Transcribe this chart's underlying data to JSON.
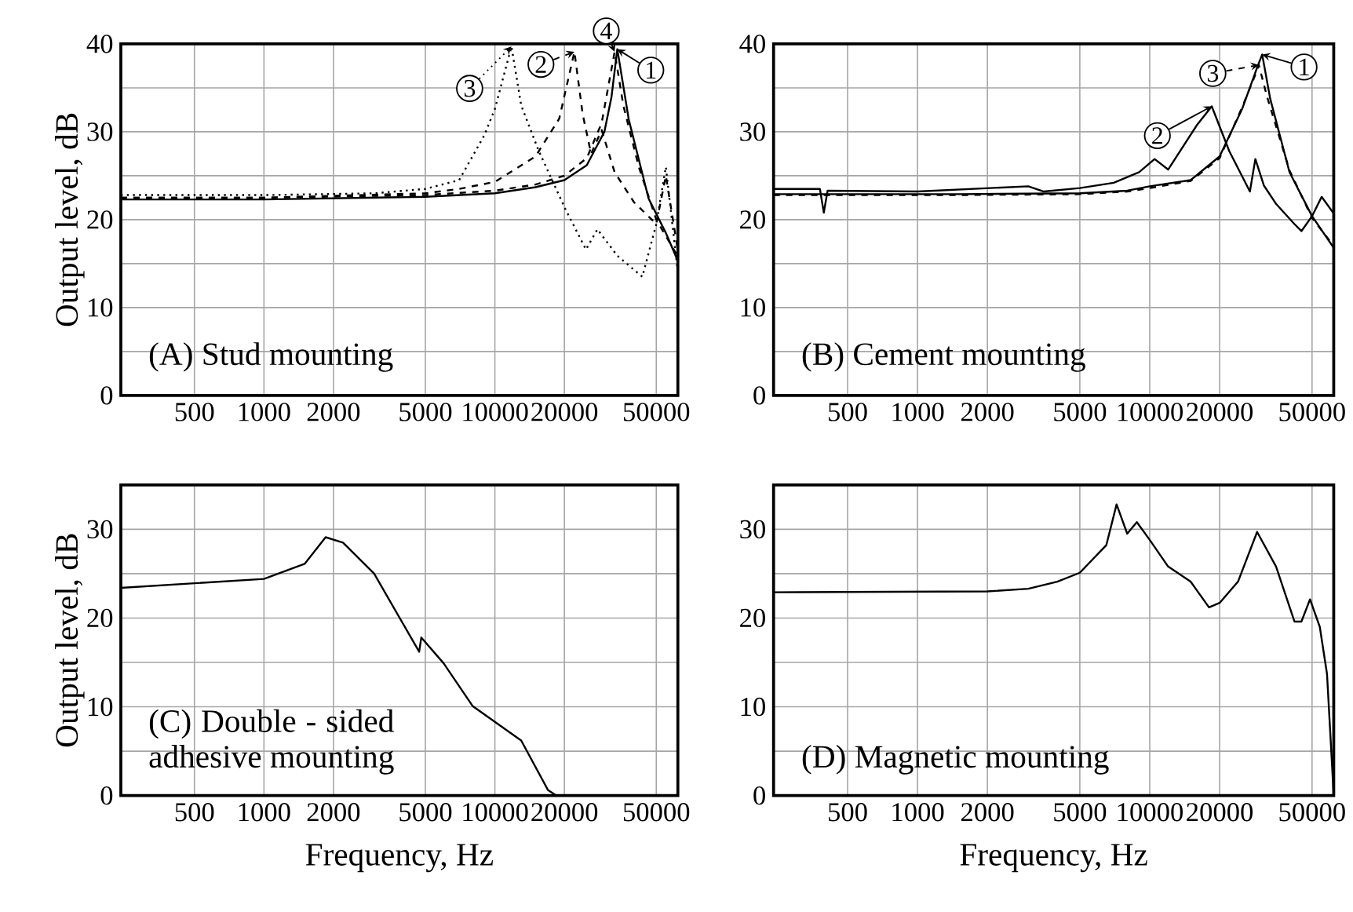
{
  "chart_data": [
    {
      "type": "line",
      "title": "(A) Stud mounting",
      "ylabel": "Output level, dB",
      "log": "x",
      "grid": true,
      "legend": "top right",
      "xlim": [
        240,
        62000
      ],
      "ylim": [
        0,
        40
      ],
      "xticks": [
        500,
        1000,
        2000,
        5000,
        10000,
        20000,
        50000
      ],
      "yticks": [
        0,
        10,
        20,
        30,
        40
      ],
      "series": [
        {
          "name": "1",
          "color": "#000000",
          "line_style": "solid",
          "x": [
            240,
            1000,
            5000,
            10000,
            15000,
            20000,
            25000,
            29800,
            32000,
            33900,
            38000,
            46300,
            55000,
            62000
          ],
          "values": [
            22.3,
            22.3,
            22.6,
            23,
            23.7,
            24.5,
            26.2,
            30,
            34,
            39.4,
            31.4,
            22.4,
            18.5,
            15.3
          ]
        },
        {
          "name": "2",
          "color": "#000000",
          "line_style": "dashed",
          "x": [
            240,
            1000,
            5000,
            7000,
            10000,
            15000,
            19000,
            22100,
            24000,
            26100,
            29000,
            33000,
            40000,
            50000,
            55000,
            62000
          ],
          "values": [
            22.5,
            22.5,
            23,
            23.5,
            24.3,
            27.2,
            31.5,
            39.1,
            32,
            27.5,
            30.2,
            25.4,
            22,
            19.5,
            25,
            16.5
          ]
        },
        {
          "name": "3",
          "color": "#000000",
          "line_style": "dotted",
          "x": [
            240,
            1000,
            3000,
            5000,
            7000,
            9000,
            10000,
            11800,
            13000,
            15500,
            20200,
            24800,
            27800,
            33900,
            43500,
            50000,
            55000,
            62000
          ],
          "values": [
            22.8,
            22.8,
            23,
            23.5,
            24.5,
            29.6,
            32.6,
            39.7,
            33,
            27.8,
            21.2,
            16.6,
            18.9,
            15.9,
            13.5,
            19.5,
            26,
            14
          ]
        },
        {
          "name": "4",
          "color": "#000000",
          "line_style": "dashed",
          "x": [
            240,
            1000,
            5000,
            10000,
            15000,
            20000,
            25000,
            29000,
            33000,
            36000,
            42000,
            50000,
            62000
          ],
          "values": [
            22.5,
            22.5,
            22.8,
            23.3,
            24,
            25,
            27,
            31,
            39.1,
            33,
            26,
            20,
            15.8
          ]
        }
      ]
    },
    {
      "type": "line",
      "title": "(B) Cement mounting",
      "log": "x",
      "grid": true,
      "legend": "top right",
      "xlim": [
        240,
        62000
      ],
      "ylim": [
        0,
        40
      ],
      "xticks": [
        500,
        1000,
        2000,
        5000,
        10000,
        20000,
        50000
      ],
      "yticks": [
        0,
        10,
        20,
        30,
        40
      ],
      "series": [
        {
          "name": "1",
          "color": "#000000",
          "line_style": "solid",
          "x": [
            240,
            1500,
            5000,
            8000,
            10000,
            15000,
            20000,
            25000,
            29000,
            30500,
            33000,
            40000,
            50000,
            62000
          ],
          "values": [
            22.9,
            22.9,
            23,
            23.3,
            23.8,
            24.5,
            27.2,
            32.6,
            37.3,
            38.8,
            33.8,
            25.4,
            20.4,
            16.8
          ]
        },
        {
          "name": "2",
          "color": "#000000",
          "line_style": "solid",
          "x": [
            240,
            380,
            395,
            410,
            1000,
            3000,
            3500,
            5000,
            7000,
            9000,
            10500,
            12000,
            16000,
            18500,
            22000,
            27000,
            28500,
            31000,
            35000,
            42000,
            45000,
            50000,
            55000,
            62000
          ],
          "values": [
            23.5,
            23.5,
            20.8,
            23.3,
            23.2,
            23.8,
            23.2,
            23.6,
            24.2,
            25.4,
            26.9,
            25.7,
            30.8,
            32.9,
            27.8,
            23.2,
            26.9,
            23.9,
            21.8,
            19.5,
            18.7,
            20.4,
            22.6,
            20.7
          ]
        },
        {
          "name": "3",
          "color": "#000000",
          "line_style": "dashed",
          "x": [
            240,
            1500,
            5000,
            8000,
            10000,
            15000,
            20000,
            25000,
            28500,
            29500,
            32000,
            40000,
            50000,
            62000
          ],
          "values": [
            22.8,
            22.8,
            22.9,
            23.2,
            23.6,
            24.4,
            27,
            32.8,
            36.5,
            37.6,
            34,
            25.6,
            20.2,
            17
          ]
        }
      ]
    },
    {
      "type": "line",
      "title": "(C) Double - sided adhesive mounting",
      "xlabel": "Frequency, Hz",
      "ylabel": "Output level, dB",
      "log": "x",
      "grid": true,
      "xlim": [
        240,
        62000
      ],
      "ylim": [
        0,
        35
      ],
      "xticks": [
        500,
        1000,
        2000,
        5000,
        10000,
        20000,
        50000
      ],
      "yticks": [
        0,
        10,
        20,
        30
      ],
      "series": [
        {
          "color": "#000000",
          "line_style": "solid",
          "x": [
            240,
            1000,
            1500,
            1850,
            2200,
            3000,
            4700,
            4800,
            6000,
            8000,
            10000,
            13000,
            17000,
            18500
          ],
          "values": [
            23.4,
            24.4,
            26.1,
            29.1,
            28.5,
            25,
            16.2,
            17.8,
            14.9,
            10.1,
            8.3,
            6.2,
            0.6,
            0
          ]
        }
      ]
    },
    {
      "type": "line",
      "title": "(D) Magnetic mounting",
      "xlabel": "Frequency, Hz",
      "log": "x",
      "grid": true,
      "xlim": [
        240,
        62000
      ],
      "ylim": [
        0,
        35
      ],
      "xticks": [
        500,
        1000,
        2000,
        5000,
        10000,
        20000,
        50000
      ],
      "yticks": [
        0,
        10,
        20,
        30
      ],
      "series": [
        {
          "color": "#000000",
          "line_style": "solid",
          "x": [
            240,
            2000,
            3000,
            4000,
            5000,
            6500,
            7200,
            8000,
            8800,
            10000,
            12000,
            15000,
            18000,
            20000,
            24000,
            29000,
            35000,
            42000,
            45000,
            49000,
            54000,
            58000,
            62000
          ],
          "values": [
            22.9,
            23,
            23.3,
            24.1,
            25.1,
            28.2,
            32.8,
            29.5,
            30.8,
            28.8,
            25.8,
            24.1,
            21.2,
            21.7,
            24.1,
            29.7,
            25.8,
            19.6,
            19.6,
            22.1,
            19,
            13.7,
            0
          ]
        }
      ]
    }
  ]
}
